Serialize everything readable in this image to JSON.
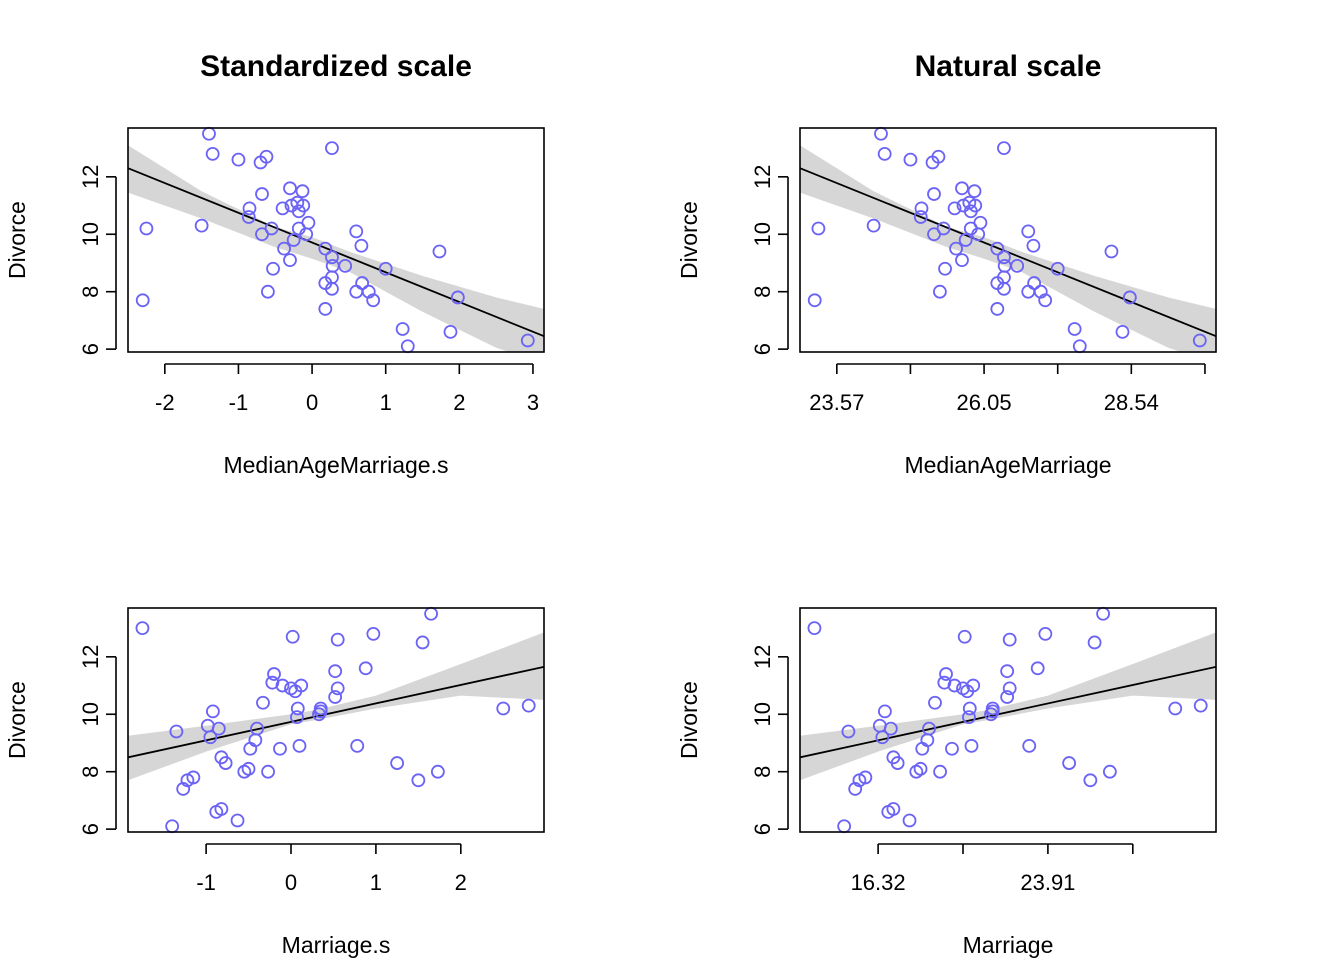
{
  "colors": {
    "points": "#6B63F5",
    "band": "#D6D6D6",
    "line": "#000000"
  },
  "chart_data": [
    {
      "type": "scatter",
      "title": "Standardized scale",
      "xlabel": "MedianAgeMarriage.s",
      "ylabel": "Divorce",
      "xlim": [
        -2.5,
        3.15
      ],
      "ylim": [
        5.9,
        13.7
      ],
      "xticks": [
        -2,
        -1,
        0,
        1,
        2,
        3
      ],
      "xtick_labels": [
        "-2",
        "-1",
        "0",
        "1",
        "2",
        "3"
      ],
      "yticks": [
        6,
        8,
        10,
        12
      ],
      "ytick_labels": [
        "6",
        "8",
        "10",
        "12"
      ],
      "regression": {
        "line": [
          [
            -2.5,
            12.3
          ],
          [
            3.15,
            6.45
          ]
        ],
        "band_upper": [
          [
            -2.5,
            13.1
          ],
          [
            -1.5,
            11.5
          ],
          [
            -0.5,
            10.25
          ],
          [
            0,
            9.9
          ],
          [
            0.5,
            9.4
          ],
          [
            1.5,
            8.55
          ],
          [
            2.5,
            7.8
          ],
          [
            3.15,
            7.4
          ]
        ],
        "band_lower": [
          [
            -2.5,
            11.45
          ],
          [
            -1.5,
            10.55
          ],
          [
            -0.5,
            9.55
          ],
          [
            0,
            9.15
          ],
          [
            0.5,
            8.7
          ],
          [
            1.5,
            7.3
          ],
          [
            2.5,
            6.05
          ],
          [
            3.15,
            5.5
          ]
        ]
      },
      "points": [
        [
          -1.4,
          13.5
        ],
        [
          -1.35,
          12.8
        ],
        [
          -1.0,
          12.6
        ],
        [
          -0.7,
          12.5
        ],
        [
          -0.62,
          12.7
        ],
        [
          0.27,
          13.0
        ],
        [
          -0.68,
          11.4
        ],
        [
          -0.3,
          11.6
        ],
        [
          -0.13,
          11.5
        ],
        [
          -0.4,
          10.9
        ],
        [
          -0.28,
          11.0
        ],
        [
          -0.2,
          11.1
        ],
        [
          -0.18,
          10.8
        ],
        [
          -0.12,
          11.0
        ],
        [
          -0.85,
          10.9
        ],
        [
          -0.86,
          10.6
        ],
        [
          -1.5,
          10.3
        ],
        [
          -2.25,
          10.2
        ],
        [
          -0.55,
          10.2
        ],
        [
          -0.68,
          10.0
        ],
        [
          -0.25,
          9.8
        ],
        [
          -0.18,
          10.2
        ],
        [
          -0.08,
          10.0
        ],
        [
          -0.05,
          10.4
        ],
        [
          -0.38,
          9.5
        ],
        [
          -0.3,
          9.1
        ],
        [
          0.18,
          9.5
        ],
        [
          0.27,
          9.2
        ],
        [
          0.28,
          8.9
        ],
        [
          0.45,
          8.9
        ],
        [
          0.6,
          10.1
        ],
        [
          0.67,
          9.6
        ],
        [
          -0.53,
          8.8
        ],
        [
          -0.6,
          8.0
        ],
        [
          0.27,
          8.5
        ],
        [
          0.18,
          8.3
        ],
        [
          0.27,
          8.1
        ],
        [
          0.68,
          8.3
        ],
        [
          0.6,
          8.0
        ],
        [
          0.77,
          8.0
        ],
        [
          0.83,
          7.7
        ],
        [
          1.0,
          8.8
        ],
        [
          1.73,
          9.4
        ],
        [
          1.98,
          7.8
        ],
        [
          0.18,
          7.4
        ],
        [
          -2.3,
          7.7
        ],
        [
          1.23,
          6.7
        ],
        [
          1.88,
          6.6
        ],
        [
          1.3,
          6.1
        ],
        [
          2.93,
          6.3
        ]
      ]
    },
    {
      "type": "scatter",
      "title": "Natural scale",
      "xlabel": "MedianAgeMarriage",
      "ylabel": "Divorce",
      "xlim": [
        -2.5,
        3.15
      ],
      "ylim": [
        5.9,
        13.7
      ],
      "xticks": [
        -2,
        -1,
        0,
        1,
        2,
        3
      ],
      "xtick_labels": [
        "23.57",
        "",
        "26.05",
        "",
        "28.54",
        ""
      ],
      "yticks": [
        6,
        8,
        10,
        12
      ],
      "ytick_labels": [
        "6",
        "8",
        "10",
        "12"
      ],
      "regression": {
        "line": [
          [
            -2.5,
            12.3
          ],
          [
            3.15,
            6.45
          ]
        ],
        "band_upper": [
          [
            -2.5,
            13.1
          ],
          [
            -1.5,
            11.5
          ],
          [
            -0.5,
            10.25
          ],
          [
            0,
            9.9
          ],
          [
            0.5,
            9.4
          ],
          [
            1.5,
            8.55
          ],
          [
            2.5,
            7.8
          ],
          [
            3.15,
            7.4
          ]
        ],
        "band_lower": [
          [
            -2.5,
            11.45
          ],
          [
            -1.5,
            10.55
          ],
          [
            -0.5,
            9.55
          ],
          [
            0,
            9.15
          ],
          [
            0.5,
            8.7
          ],
          [
            1.5,
            7.3
          ],
          [
            2.5,
            6.05
          ],
          [
            3.15,
            5.5
          ]
        ]
      },
      "points": [
        [
          -1.4,
          13.5
        ],
        [
          -1.35,
          12.8
        ],
        [
          -1.0,
          12.6
        ],
        [
          -0.7,
          12.5
        ],
        [
          -0.62,
          12.7
        ],
        [
          0.27,
          13.0
        ],
        [
          -0.68,
          11.4
        ],
        [
          -0.3,
          11.6
        ],
        [
          -0.13,
          11.5
        ],
        [
          -0.4,
          10.9
        ],
        [
          -0.28,
          11.0
        ],
        [
          -0.2,
          11.1
        ],
        [
          -0.18,
          10.8
        ],
        [
          -0.12,
          11.0
        ],
        [
          -0.85,
          10.9
        ],
        [
          -0.86,
          10.6
        ],
        [
          -1.5,
          10.3
        ],
        [
          -2.25,
          10.2
        ],
        [
          -0.55,
          10.2
        ],
        [
          -0.68,
          10.0
        ],
        [
          -0.25,
          9.8
        ],
        [
          -0.18,
          10.2
        ],
        [
          -0.08,
          10.0
        ],
        [
          -0.05,
          10.4
        ],
        [
          -0.38,
          9.5
        ],
        [
          -0.3,
          9.1
        ],
        [
          0.18,
          9.5
        ],
        [
          0.27,
          9.2
        ],
        [
          0.28,
          8.9
        ],
        [
          0.45,
          8.9
        ],
        [
          0.6,
          10.1
        ],
        [
          0.67,
          9.6
        ],
        [
          -0.53,
          8.8
        ],
        [
          -0.6,
          8.0
        ],
        [
          0.27,
          8.5
        ],
        [
          0.18,
          8.3
        ],
        [
          0.27,
          8.1
        ],
        [
          0.68,
          8.3
        ],
        [
          0.6,
          8.0
        ],
        [
          0.77,
          8.0
        ],
        [
          0.83,
          7.7
        ],
        [
          1.0,
          8.8
        ],
        [
          1.73,
          9.4
        ],
        [
          1.98,
          7.8
        ],
        [
          0.18,
          7.4
        ],
        [
          -2.3,
          7.7
        ],
        [
          1.23,
          6.7
        ],
        [
          1.88,
          6.6
        ],
        [
          1.3,
          6.1
        ],
        [
          2.93,
          6.3
        ]
      ]
    },
    {
      "type": "scatter",
      "title": "",
      "xlabel": "Marriage.s",
      "ylabel": "Divorce",
      "xlim": [
        -1.92,
        2.98
      ],
      "ylim": [
        5.9,
        13.7
      ],
      "xticks": [
        -1,
        0,
        1,
        2
      ],
      "xtick_labels": [
        "-1",
        "0",
        "1",
        "2"
      ],
      "yticks": [
        6,
        8,
        10,
        12
      ],
      "ytick_labels": [
        "6",
        "8",
        "10",
        "12"
      ],
      "regression": {
        "line": [
          [
            -1.92,
            8.5
          ],
          [
            2.98,
            11.65
          ]
        ],
        "band_upper": [
          [
            -1.92,
            9.25
          ],
          [
            -1,
            9.6
          ],
          [
            0,
            10.0
          ],
          [
            0.3,
            10.15
          ],
          [
            1,
            10.65
          ],
          [
            2,
            11.75
          ],
          [
            2.98,
            12.85
          ]
        ],
        "band_lower": [
          [
            -1.92,
            7.7
          ],
          [
            -1,
            8.7
          ],
          [
            0,
            9.65
          ],
          [
            0.3,
            9.8
          ],
          [
            1,
            10.2
          ],
          [
            2,
            10.65
          ],
          [
            2.98,
            10.5
          ]
        ]
      },
      "points": [
        [
          -1.75,
          13.0
        ],
        [
          1.65,
          13.5
        ],
        [
          1.55,
          12.5
        ],
        [
          0.55,
          12.6
        ],
        [
          0.97,
          12.8
        ],
        [
          0.02,
          12.7
        ],
        [
          0.88,
          11.6
        ],
        [
          0.52,
          11.5
        ],
        [
          -0.2,
          11.4
        ],
        [
          -0.22,
          11.1
        ],
        [
          -0.1,
          11.0
        ],
        [
          0.0,
          10.9
        ],
        [
          0.05,
          10.8
        ],
        [
          0.12,
          11.0
        ],
        [
          0.55,
          10.9
        ],
        [
          0.52,
          10.6
        ],
        [
          -0.33,
          10.4
        ],
        [
          0.08,
          10.2
        ],
        [
          0.07,
          9.9
        ],
        [
          0.33,
          10.0
        ],
        [
          0.35,
          10.1
        ],
        [
          0.35,
          10.2
        ],
        [
          2.5,
          10.2
        ],
        [
          2.8,
          10.3
        ],
        [
          -0.92,
          10.1
        ],
        [
          -0.98,
          9.6
        ],
        [
          -0.95,
          9.2
        ],
        [
          -0.85,
          9.5
        ],
        [
          -1.35,
          9.4
        ],
        [
          -0.4,
          9.5
        ],
        [
          -0.42,
          9.1
        ],
        [
          -0.48,
          8.8
        ],
        [
          -0.13,
          8.8
        ],
        [
          0.1,
          8.9
        ],
        [
          0.78,
          8.9
        ],
        [
          -0.82,
          8.5
        ],
        [
          -0.77,
          8.3
        ],
        [
          -0.55,
          8.0
        ],
        [
          -0.5,
          8.1
        ],
        [
          -0.27,
          8.0
        ],
        [
          1.25,
          8.3
        ],
        [
          1.73,
          8.0
        ],
        [
          1.5,
          7.7
        ],
        [
          -1.15,
          7.8
        ],
        [
          -1.22,
          7.7
        ],
        [
          -1.27,
          7.4
        ],
        [
          -0.82,
          6.7
        ],
        [
          -0.88,
          6.6
        ],
        [
          -0.63,
          6.3
        ],
        [
          -1.4,
          6.1
        ]
      ]
    },
    {
      "type": "scatter",
      "title": "",
      "xlabel": "Marriage",
      "ylabel": "Divorce",
      "xlim": [
        -1.92,
        2.98
      ],
      "ylim": [
        5.9,
        13.7
      ],
      "xticks": [
        -1,
        0,
        1,
        2
      ],
      "xtick_labels": [
        "16.32",
        "",
        "23.91",
        ""
      ],
      "yticks": [
        6,
        8,
        10,
        12
      ],
      "ytick_labels": [
        "6",
        "8",
        "10",
        "12"
      ],
      "regression": {
        "line": [
          [
            -1.92,
            8.5
          ],
          [
            2.98,
            11.65
          ]
        ],
        "band_upper": [
          [
            -1.92,
            9.25
          ],
          [
            -1,
            9.6
          ],
          [
            0,
            10.0
          ],
          [
            0.3,
            10.15
          ],
          [
            1,
            10.65
          ],
          [
            2,
            11.75
          ],
          [
            2.98,
            12.85
          ]
        ],
        "band_lower": [
          [
            -1.92,
            7.7
          ],
          [
            -1,
            8.7
          ],
          [
            0,
            9.65
          ],
          [
            0.3,
            9.8
          ],
          [
            1,
            10.2
          ],
          [
            2,
            10.65
          ],
          [
            2.98,
            10.5
          ]
        ]
      },
      "points": [
        [
          -1.75,
          13.0
        ],
        [
          1.65,
          13.5
        ],
        [
          1.55,
          12.5
        ],
        [
          0.55,
          12.6
        ],
        [
          0.97,
          12.8
        ],
        [
          0.02,
          12.7
        ],
        [
          0.88,
          11.6
        ],
        [
          0.52,
          11.5
        ],
        [
          -0.2,
          11.4
        ],
        [
          -0.22,
          11.1
        ],
        [
          -0.1,
          11.0
        ],
        [
          0.0,
          10.9
        ],
        [
          0.05,
          10.8
        ],
        [
          0.12,
          11.0
        ],
        [
          0.55,
          10.9
        ],
        [
          0.52,
          10.6
        ],
        [
          -0.33,
          10.4
        ],
        [
          0.08,
          10.2
        ],
        [
          0.07,
          9.9
        ],
        [
          0.33,
          10.0
        ],
        [
          0.35,
          10.1
        ],
        [
          0.35,
          10.2
        ],
        [
          2.5,
          10.2
        ],
        [
          2.8,
          10.3
        ],
        [
          -0.92,
          10.1
        ],
        [
          -0.98,
          9.6
        ],
        [
          -0.95,
          9.2
        ],
        [
          -0.85,
          9.5
        ],
        [
          -1.35,
          9.4
        ],
        [
          -0.4,
          9.5
        ],
        [
          -0.42,
          9.1
        ],
        [
          -0.48,
          8.8
        ],
        [
          -0.13,
          8.8
        ],
        [
          0.1,
          8.9
        ],
        [
          0.78,
          8.9
        ],
        [
          -0.82,
          8.5
        ],
        [
          -0.77,
          8.3
        ],
        [
          -0.55,
          8.0
        ],
        [
          -0.5,
          8.1
        ],
        [
          -0.27,
          8.0
        ],
        [
          1.25,
          8.3
        ],
        [
          1.73,
          8.0
        ],
        [
          1.5,
          7.7
        ],
        [
          -1.15,
          7.8
        ],
        [
          -1.22,
          7.7
        ],
        [
          -1.27,
          7.4
        ],
        [
          -0.82,
          6.7
        ],
        [
          -0.88,
          6.6
        ],
        [
          -0.63,
          6.3
        ],
        [
          -1.4,
          6.1
        ]
      ]
    }
  ]
}
